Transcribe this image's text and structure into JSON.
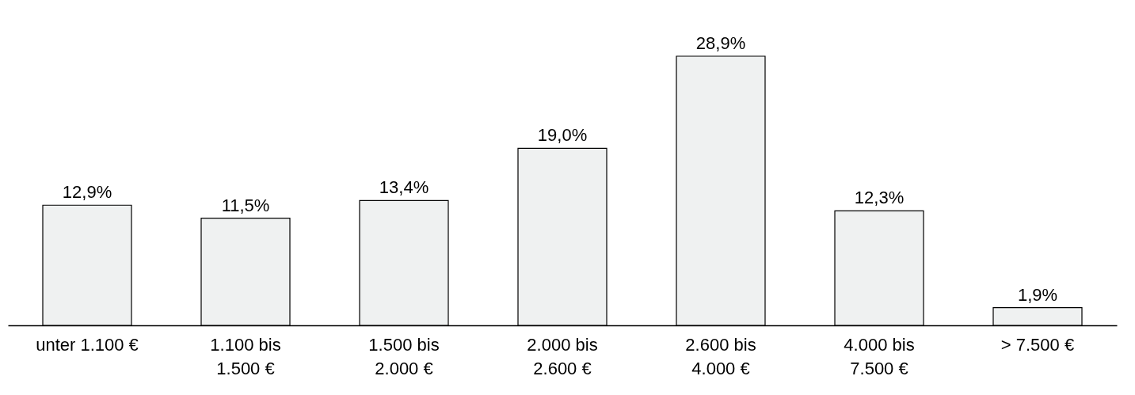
{
  "chart_data": {
    "type": "bar",
    "categories": [
      "unter 1.100 €",
      "1.100 bis 1.500 €",
      "1.500 bis 2.000 €",
      "2.000 bis 2.600 €",
      "2.600 bis 4.000 €",
      "4.000 bis 7.500 €",
      "> 7.500 €"
    ],
    "values": [
      12.9,
      11.5,
      13.4,
      19.0,
      28.9,
      12.3,
      1.9
    ],
    "value_labels": [
      "12,9%",
      "11,5%",
      "13,4%",
      "19,0%",
      "28,9%",
      "12,3%",
      "1,9%"
    ],
    "color": "#eff1f1"
  }
}
